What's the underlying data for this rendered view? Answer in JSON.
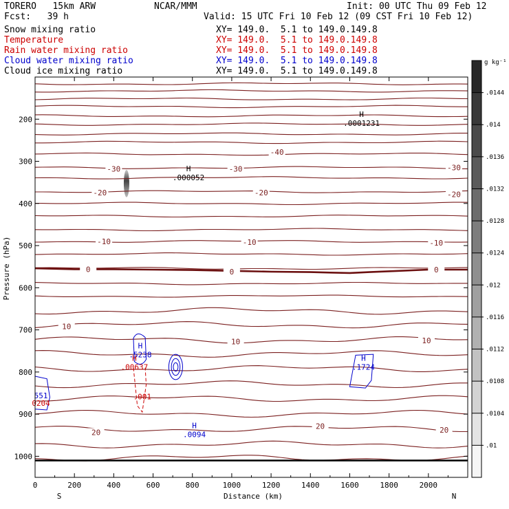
{
  "header": {
    "model": "TORERO   15km ARW",
    "center": "NCAR/MMM",
    "init": "Init: 00 UTC Thu 09 Feb 12",
    "fcst": "Fcst:   39 h",
    "valid": "Valid: 15 UTC Fri 10 Feb 12 (09 CST Fri 10 Feb 12)"
  },
  "legend": [
    {
      "name": "Snow mixing ratio",
      "color": "#000000",
      "xy": "XY= 149.0.  5.1 to 149.0.149.8"
    },
    {
      "name": "Temperature",
      "color": "#cc0000",
      "xy": "XY= 149.0.  5.1 to 149.0.149.8"
    },
    {
      "name": "Rain water mixing ratio",
      "color": "#cc0000",
      "xy": "XY= 149.0.  5.1 to 149.0.149.8"
    },
    {
      "name": "Cloud water mixing ratio",
      "color": "#0000cc",
      "xy": "XY= 149.0.  5.1 to 149.0.149.8"
    },
    {
      "name": "Cloud ice mixing ratio",
      "color": "#000000",
      "xy": "XY= 149.0.  5.1 to 149.0.149.8"
    }
  ],
  "chart_data": {
    "type": "cross-section",
    "xlabel": "Distance (km)",
    "ylabel": "Pressure (hPa)",
    "xlim": [
      0,
      2200
    ],
    "x_ticks": [
      "0",
      "200",
      "400",
      "600",
      "800",
      "1000",
      "1200",
      "1400",
      "1600",
      "1800",
      "2000"
    ],
    "x_tick_values": [
      0,
      200,
      400,
      600,
      800,
      1000,
      1200,
      1400,
      1600,
      1800,
      2000
    ],
    "ylim": [
      1050,
      100
    ],
    "y_ticks": [
      "200",
      "300",
      "400",
      "500",
      "600",
      "700",
      "800",
      "900",
      "1000"
    ],
    "y_tick_values": [
      200,
      300,
      400,
      500,
      600,
      700,
      800,
      900,
      1000
    ],
    "x_end_labels": {
      "left": "S",
      "right": "N"
    },
    "temperature_color": "#7a1e1e",
    "temperature_contours_p": [
      116,
      133,
      152,
      170,
      192,
      212,
      235,
      255,
      283,
      315,
      339,
      372,
      400,
      430,
      462,
      490,
      520,
      554,
      590,
      620,
      655,
      688,
      724,
      757,
      792,
      829,
      863,
      899,
      935,
      972,
      1004
    ],
    "zero_isotherm_p": [
      554,
      556,
      556,
      557,
      558,
      560,
      562,
      563,
      564,
      565,
      563,
      560,
      557,
      557
    ],
    "zero_isotherm_x": [
      0,
      200,
      400,
      600,
      800,
      1000,
      1200,
      1400,
      1500,
      1600,
      1700,
      1850,
      2000,
      2200
    ],
    "temperature_labels": [
      {
        "text": "-40",
        "x": 1230,
        "p": 278
      },
      {
        "text": "-30",
        "x": 400,
        "p": 318
      },
      {
        "text": "-30",
        "x": 1020,
        "p": 318
      },
      {
        "text": "-30",
        "x": 2130,
        "p": 315
      },
      {
        "text": "-20",
        "x": 330,
        "p": 374
      },
      {
        "text": "-20",
        "x": 1150,
        "p": 374
      },
      {
        "text": "-20",
        "x": 2130,
        "p": 378
      },
      {
        "text": "-10",
        "x": 350,
        "p": 490
      },
      {
        "text": "-10",
        "x": 1090,
        "p": 492
      },
      {
        "text": "-10",
        "x": 2040,
        "p": 493
      },
      {
        "text": "0",
        "x": 270,
        "p": 556
      },
      {
        "text": "0",
        "x": 1000,
        "p": 562
      },
      {
        "text": "0",
        "x": 2040,
        "p": 557
      },
      {
        "text": "10",
        "x": 160,
        "p": 692
      },
      {
        "text": "10",
        "x": 1020,
        "p": 728
      },
      {
        "text": "10",
        "x": 1990,
        "p": 725
      },
      {
        "text": "20",
        "x": 310,
        "p": 943
      },
      {
        "text": "20",
        "x": 1450,
        "p": 928
      },
      {
        "text": "20",
        "x": 2080,
        "p": 937
      }
    ],
    "extrema": [
      {
        "mark": "H",
        "value": ".0001231",
        "x": 1660,
        "p": 211,
        "color": "#000000"
      },
      {
        "mark": "H",
        "value": ".000052",
        "x": 780,
        "p": 340,
        "color": "#000000"
      },
      {
        "mark": "H",
        "value": ".5238",
        "x": 535,
        "p": 760,
        "color": "#0000cc"
      },
      {
        "mark": "H",
        "value": ".00637",
        "x": 505,
        "p": 790,
        "color": "#cc0000"
      },
      {
        "mark": "",
        "value": ".001",
        "x": 545,
        "p": 860,
        "color": "#cc0000"
      },
      {
        "mark": "H",
        "value": ".1724",
        "x": 1670,
        "p": 790,
        "color": "#0000cc"
      },
      {
        "mark": "H",
        "value": ".0094",
        "x": 810,
        "p": 950,
        "color": "#0000cc"
      },
      {
        "mark": "",
        "value": "551",
        "x": 30,
        "p": 857,
        "color": "#0000cc"
      },
      {
        "mark": "",
        "value": "0204",
        "x": 30,
        "p": 875,
        "color": "#cc0000"
      }
    ],
    "cloud_water_contours": [
      {
        "cx": 715,
        "cp": 788,
        "rx": 35,
        "rp": 30
      },
      {
        "cx": 715,
        "cp": 788,
        "rx": 22,
        "rp": 20
      },
      {
        "cx": 715,
        "cp": 788,
        "rx": 12,
        "rp": 10
      }
    ],
    "snow_shading": {
      "x": 465,
      "p_top": 320,
      "p_bottom": 385
    },
    "colorbar": {
      "unit": "g kg⁻¹",
      "ticks": [
        ".0144",
        ".014",
        ".0136",
        ".0132",
        ".0128",
        ".0124",
        ".012",
        ".0116",
        ".0112",
        ".0108",
        ".0104",
        ".01"
      ],
      "tick_values": [
        0.0144,
        0.014,
        0.0136,
        0.0132,
        0.0128,
        0.0124,
        0.012,
        0.0116,
        0.0112,
        0.0108,
        0.0104,
        0.01
      ]
    }
  }
}
